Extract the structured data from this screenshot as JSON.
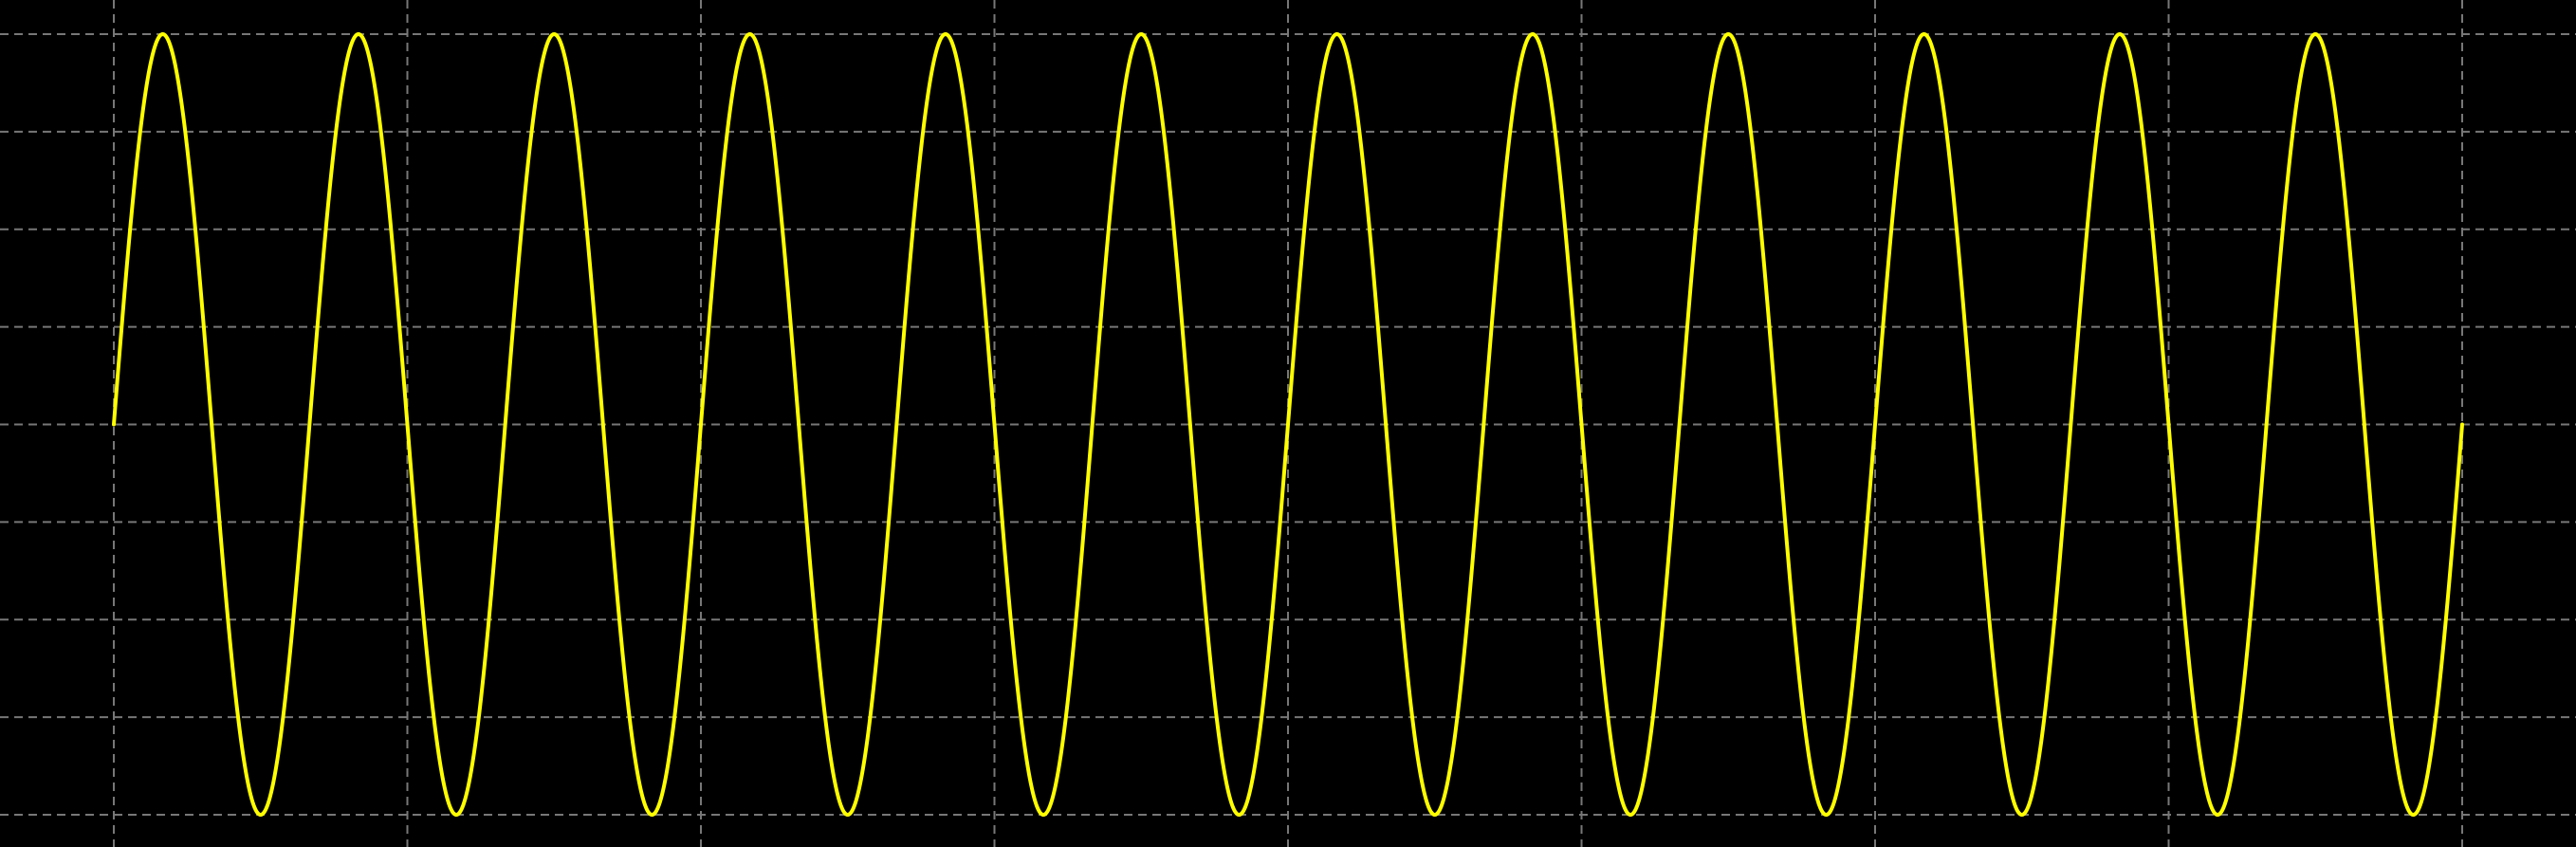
{
  "chart_data": {
    "type": "line",
    "title": "",
    "xlabel": "",
    "ylabel": "",
    "grid": true,
    "legend": "none",
    "xlim": [
      0,
      12
    ],
    "ylim": [
      -1,
      1
    ],
    "x_divisions": [
      0,
      1.5,
      3,
      4.5,
      6,
      7.5,
      9,
      10.5,
      12
    ],
    "y_divisions": [
      -1,
      -0.75,
      -0.5,
      -0.25,
      0,
      0.25,
      0.5,
      0.75,
      1
    ],
    "series": [
      {
        "function": "sine",
        "amplitude": 1,
        "offset": 0,
        "phase": 0,
        "period": 1,
        "cycles": 12,
        "x_start": 0,
        "x_end": 12,
        "color": "#ffff00"
      }
    ]
  },
  "colors": {
    "background": "#000000",
    "grid": "#777777",
    "trace": "#ffff00"
  }
}
